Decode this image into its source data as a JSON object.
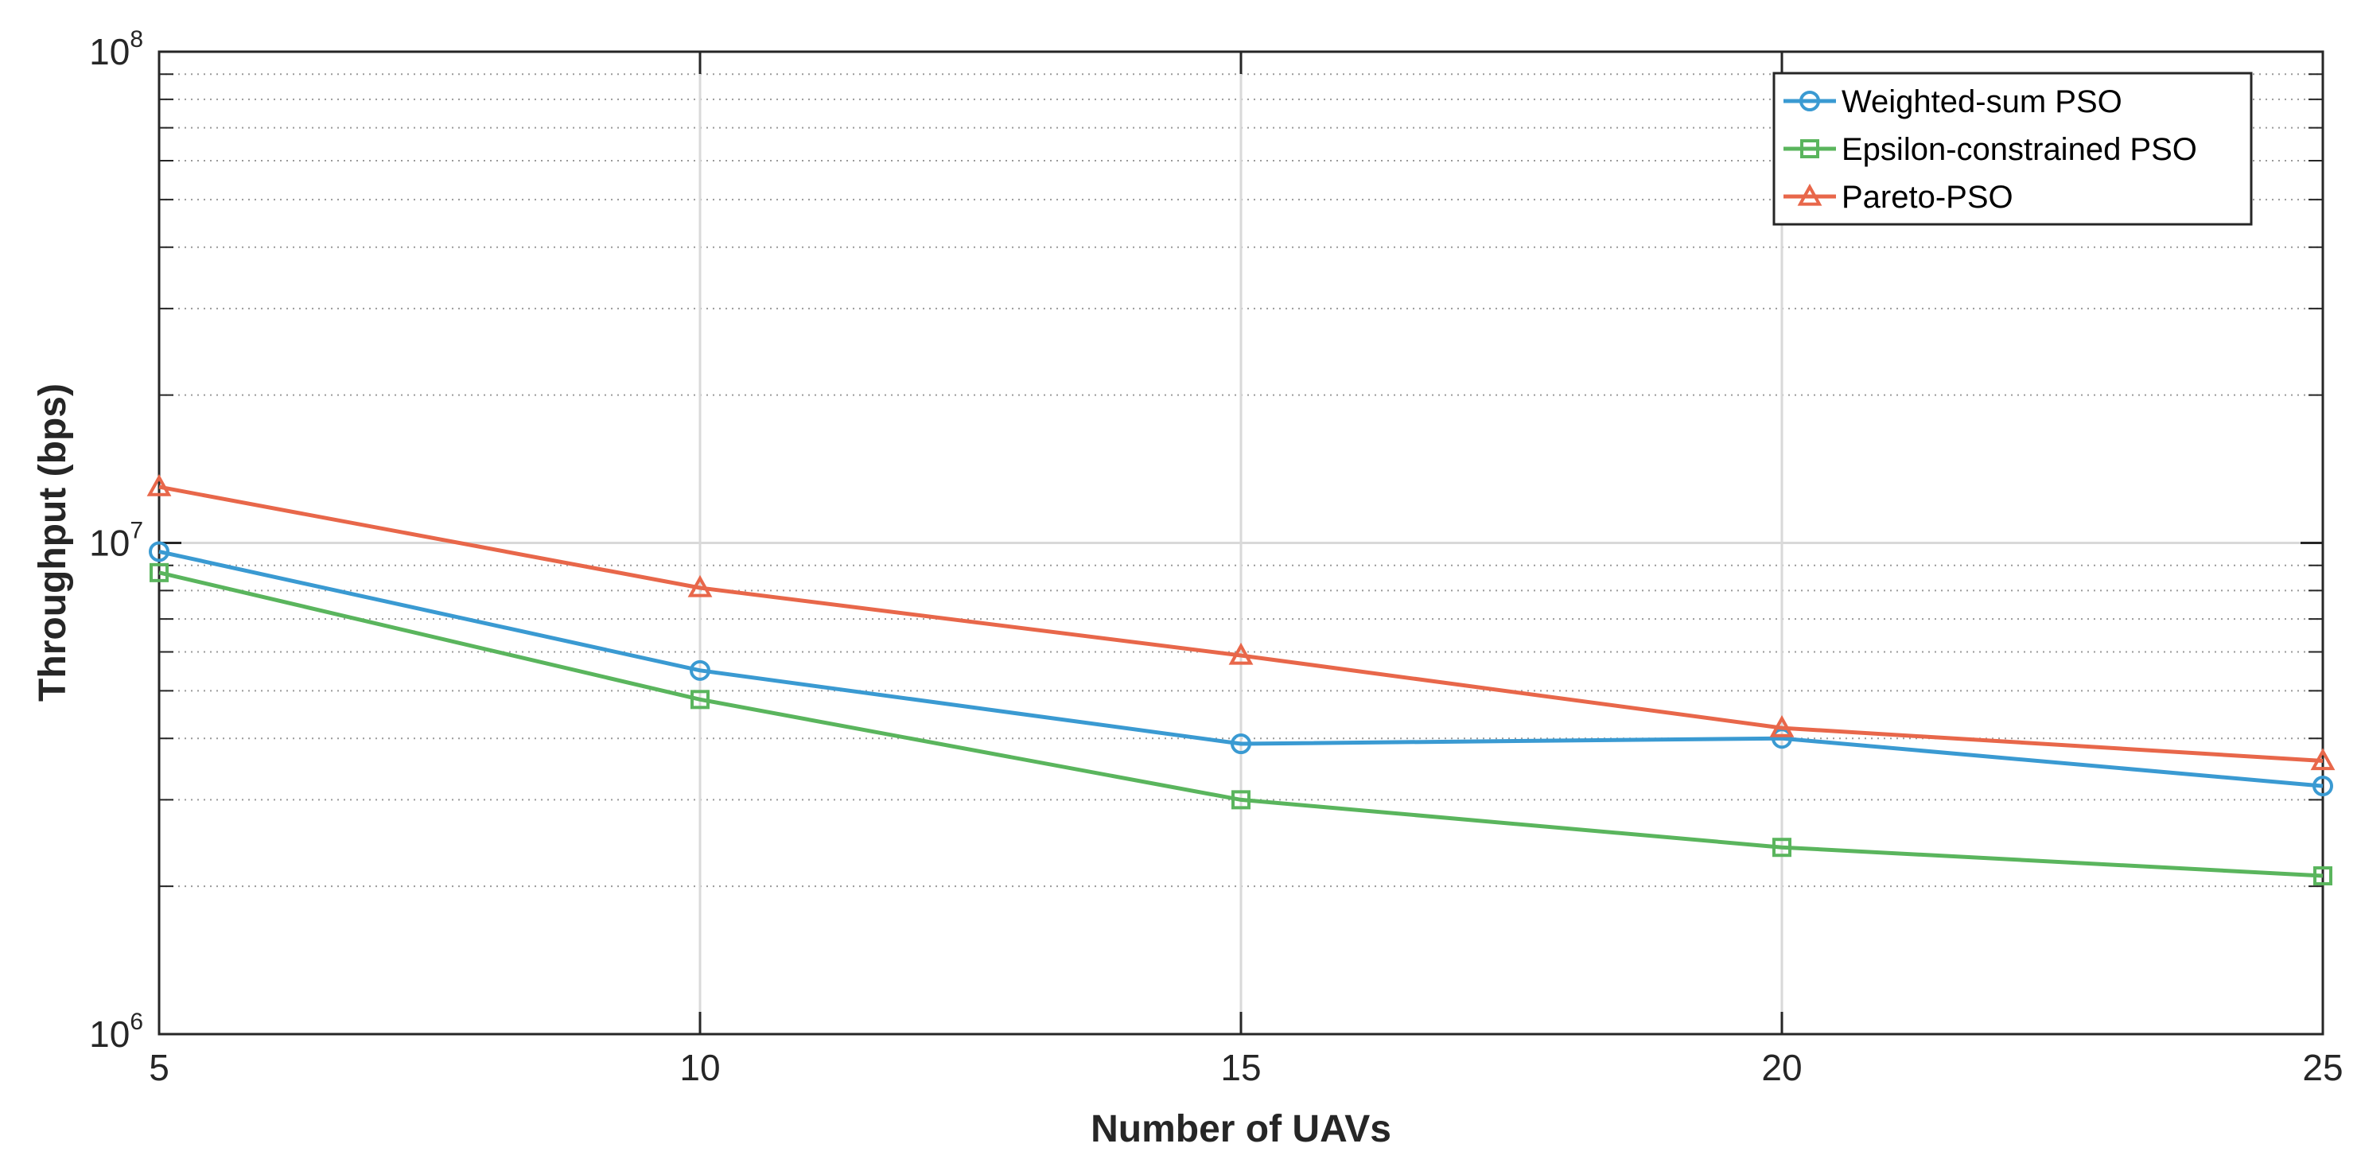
{
  "chart_data": {
    "type": "line",
    "title": "",
    "xlabel": "Number of UAVs",
    "ylabel": "Throughput (bps)",
    "xscale": "linear",
    "yscale": "log",
    "xlim": [
      5,
      25
    ],
    "ylim": [
      1000000,
      100000000
    ],
    "x": [
      5,
      10,
      15,
      20,
      25
    ],
    "xticks": [
      "5",
      "10",
      "15",
      "20",
      "25"
    ],
    "yticks": [
      {
        "base": "10",
        "exp": "6"
      },
      {
        "base": "10",
        "exp": "7"
      },
      {
        "base": "10",
        "exp": "8"
      }
    ],
    "grid": true,
    "legend_position": "top-right",
    "series": [
      {
        "name": "Weighted-sum PSO",
        "color": "#3a9ad2",
        "marker": "circle",
        "values": [
          9600000,
          5500000,
          3900000,
          4000000,
          3200000
        ]
      },
      {
        "name": "Epsilon-constrained PSO",
        "color": "#5ab55d",
        "marker": "square",
        "values": [
          8700000,
          4800000,
          3000000,
          2400000,
          2100000
        ]
      },
      {
        "name": "Pareto-PSO",
        "color": "#e8674a",
        "marker": "triangle",
        "values": [
          13000000,
          8100000,
          5900000,
          4200000,
          3600000
        ]
      }
    ]
  }
}
